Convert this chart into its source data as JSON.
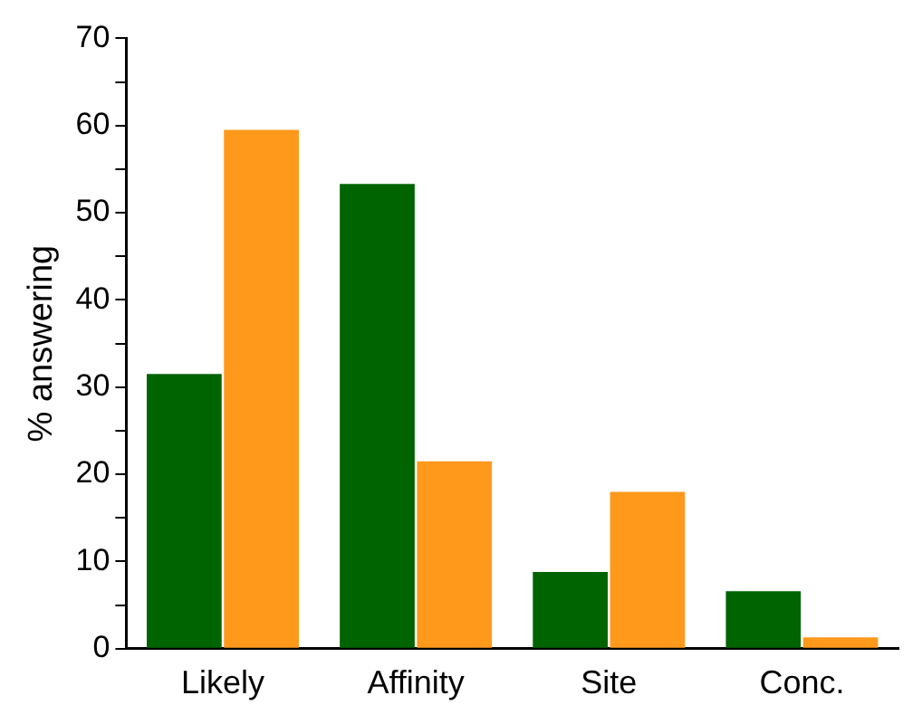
{
  "chart_data": {
    "type": "bar",
    "ylabel": "% answering",
    "categories": [
      "Likely",
      "Affinity",
      "Site",
      "Conc."
    ],
    "series": [
      {
        "color": "#006400",
        "values": [
          31.5,
          53.3,
          8.8,
          6.6
        ]
      },
      {
        "color": "#ff991c",
        "values": [
          59.5,
          21.5,
          18,
          1.3
        ]
      }
    ],
    "ylim": [
      0,
      70
    ],
    "yticks": [
      0,
      {
        "value": 5,
        "label": null
      },
      10,
      {
        "value": 15,
        "label": null
      },
      20,
      {
        "value": 25,
        "label": null
      },
      30,
      {
        "value": 35,
        "label": null
      },
      40,
      {
        "value": 45,
        "label": null
      },
      50,
      {
        "value": 55,
        "label": null
      },
      60,
      {
        "value": 65,
        "label": null
      },
      70
    ],
    "grid": false,
    "legend": false
  }
}
